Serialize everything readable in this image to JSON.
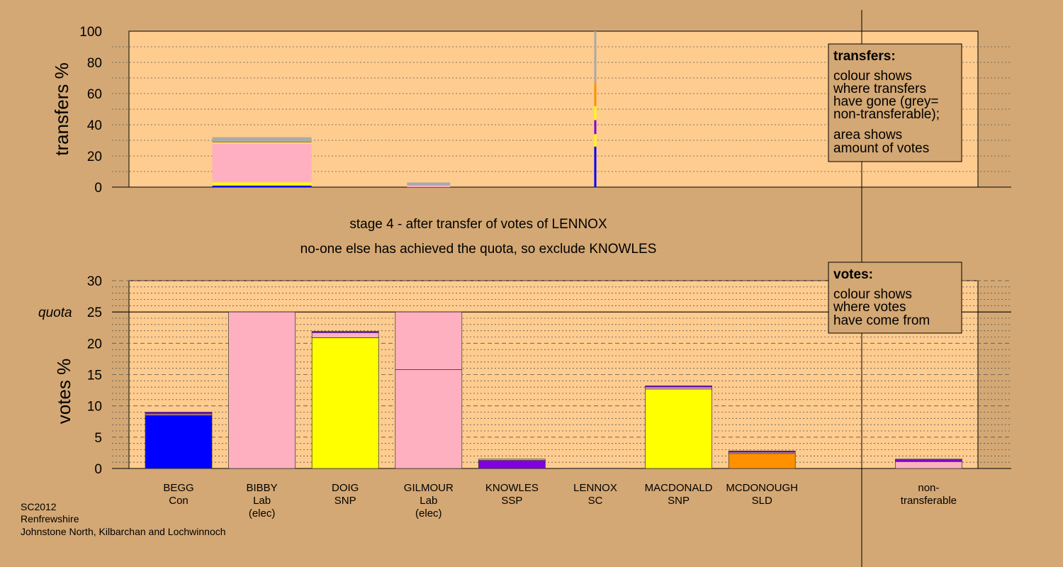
{
  "colors": {
    "background": "#d4a874",
    "plot_bg": "#ffcc8f",
    "con": "#0000ff",
    "lab": "#ffb0c0",
    "snp": "#ffff00",
    "ssp": "#8000e0",
    "sld": "#ff9000",
    "nontransferable": "#aaaaaa"
  },
  "stage_lines": [
    "stage 4 - after transfer of votes of LENNOX",
    "no-one else has achieved the quota, so exclude KNOWLES"
  ],
  "candidates": [
    {
      "name": "BEGG",
      "party": "Con",
      "status": ""
    },
    {
      "name": "BIBBY",
      "party": "Lab",
      "status": "(elec)"
    },
    {
      "name": "DOIG",
      "party": "SNP",
      "status": ""
    },
    {
      "name": "GILMOUR",
      "party": "Lab",
      "status": "(elec)"
    },
    {
      "name": "KNOWLES",
      "party": "SSP",
      "status": ""
    },
    {
      "name": "LENNOX",
      "party": "SC",
      "status": ""
    },
    {
      "name": "MACDONALD",
      "party": "SNP",
      "status": ""
    },
    {
      "name": "MCDONOUGH",
      "party": "SLD",
      "status": ""
    },
    {
      "name": "",
      "party": "",
      "status": ""
    },
    {
      "name": "non-",
      "party": "transferable",
      "status": ""
    }
  ],
  "footer": [
    "SC2012",
    "Renfrewshire",
    "Johnstone North, Kilbarchan and Lochwinnoch"
  ],
  "legend_transfers": {
    "title": "transfers:",
    "lines1": [
      "colour shows",
      "where transfers",
      "have gone (grey=",
      "non-transferable);"
    ],
    "lines2": [
      "area shows",
      "amount of votes"
    ]
  },
  "legend_votes": {
    "title": "votes:",
    "lines": [
      "colour shows",
      "where votes",
      "have come from"
    ]
  },
  "chart_data": [
    {
      "type": "bar",
      "ylabel": "transfers %",
      "ylim": [
        0,
        100
      ],
      "yticks": [
        0,
        20,
        40,
        60,
        80,
        100
      ],
      "bars": [
        {
          "slot": 1,
          "width": "wide",
          "segments": [
            {
              "color": "con",
              "value": 1
            },
            {
              "color": "snp",
              "value": 2
            },
            {
              "color": "lab",
              "value": 25
            },
            {
              "color": "snp",
              "value": 0.7
            },
            {
              "color": "ssp",
              "value": 0.3
            },
            {
              "color": "nontransferable",
              "value": 3
            }
          ]
        },
        {
          "slot": 3,
          "width": "narrow",
          "segments": [
            {
              "color": "lab",
              "value": 1
            },
            {
              "color": "nontransferable",
              "value": 2
            }
          ]
        },
        {
          "slot": 5,
          "width": "line",
          "segments": [
            {
              "color": "con",
              "value": 26
            },
            {
              "color": "snp",
              "value": 8
            },
            {
              "color": "ssp",
              "value": 9
            },
            {
              "color": "snp",
              "value": 9
            },
            {
              "color": "sld",
              "value": 15
            },
            {
              "color": "nontransferable",
              "value": 33
            }
          ]
        }
      ]
    },
    {
      "type": "bar",
      "ylabel": "votes %",
      "ylim": [
        0,
        30
      ],
      "yticks": [
        0,
        5,
        10,
        15,
        20,
        25,
        30
      ],
      "quota": 25,
      "quota_label": "quota",
      "bars": [
        {
          "slot": 0,
          "segments": [
            {
              "color": "con",
              "value": 8.5
            },
            {
              "color": "lab",
              "value": 0.2
            },
            {
              "color": "ssp",
              "value": 0.3
            }
          ]
        },
        {
          "slot": 1,
          "segments": [
            {
              "color": "lab",
              "value": 25
            }
          ]
        },
        {
          "slot": 2,
          "segments": [
            {
              "color": "snp",
              "value": 20.9
            },
            {
              "color": "lab",
              "value": 0.8
            },
            {
              "color": "ssp",
              "value": 0.2
            }
          ]
        },
        {
          "slot": 3,
          "segments": [
            {
              "color": "lab",
              "value": 15.8
            },
            {
              "color": "lab",
              "value": 9.2
            }
          ]
        },
        {
          "slot": 4,
          "segments": [
            {
              "color": "ssp",
              "value": 1.3
            },
            {
              "color": "lab",
              "value": 0.2
            }
          ]
        },
        {
          "slot": 5,
          "segments": [
            {
              "color": "lab",
              "value": 0.05
            }
          ]
        },
        {
          "slot": 6,
          "segments": [
            {
              "color": "snp",
              "value": 12.7
            },
            {
              "color": "lab",
              "value": 0.3
            },
            {
              "color": "ssp",
              "value": 0.2
            }
          ]
        },
        {
          "slot": 7,
          "segments": [
            {
              "color": "sld",
              "value": 2.4
            },
            {
              "color": "lab",
              "value": 0.2
            },
            {
              "color": "ssp",
              "value": 0.2
            }
          ]
        },
        {
          "slot": 9,
          "segments": [
            {
              "color": "lab",
              "value": 1.1
            },
            {
              "color": "ssp",
              "value": 0.3
            },
            {
              "color": "lab",
              "value": 0.1
            }
          ]
        }
      ]
    }
  ]
}
